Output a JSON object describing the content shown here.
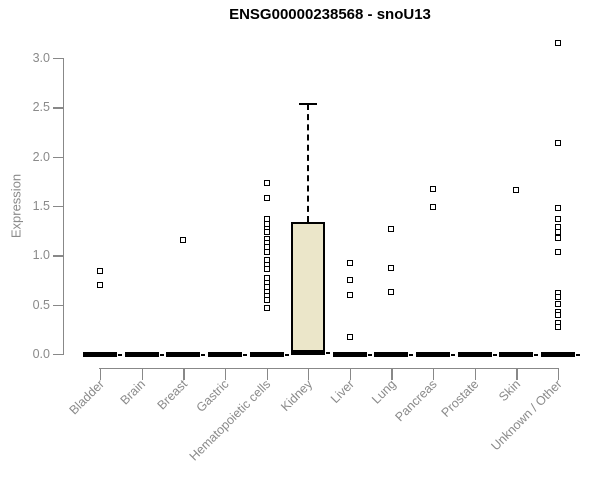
{
  "chart_data": {
    "type": "boxplot",
    "title": "ENSG00000238568 - snoU13",
    "ylabel": "Expression",
    "xlabel": "",
    "ylim": [
      0.0,
      3.0
    ],
    "yticks": [
      0.0,
      0.5,
      1.0,
      1.5,
      2.0,
      2.5,
      3.0
    ],
    "grid": false,
    "legend": "none",
    "categories": [
      "Bladder",
      "Brain",
      "Breast",
      "Gastric",
      "Hematopoietic cells",
      "Kidney",
      "Liver",
      "Lung",
      "Pancreas",
      "Prostate",
      "Skin",
      "Unknown / Other"
    ],
    "boxes": [
      {
        "category": "Bladder",
        "median": 0.0,
        "q1": 0.0,
        "q3": 0.0,
        "whisker_low": 0.0,
        "whisker_high": 0.0,
        "outliers": [
          0.84,
          0.7
        ]
      },
      {
        "category": "Brain",
        "median": 0.0,
        "q1": 0.0,
        "q3": 0.0,
        "whisker_low": 0.0,
        "whisker_high": 0.0,
        "outliers": []
      },
      {
        "category": "Breast",
        "median": 0.0,
        "q1": 0.0,
        "q3": 0.0,
        "whisker_low": 0.0,
        "whisker_high": 0.0,
        "outliers": [
          1.16
        ]
      },
      {
        "category": "Gastric",
        "median": 0.0,
        "q1": 0.0,
        "q3": 0.0,
        "whisker_low": 0.0,
        "whisker_high": 0.0,
        "outliers": []
      },
      {
        "category": "Hematopoietic cells",
        "median": 0.0,
        "q1": 0.0,
        "q3": 0.0,
        "whisker_low": 0.0,
        "whisker_high": 0.0,
        "outliers": [
          1.73,
          1.58,
          1.37,
          1.32,
          1.27,
          1.24,
          1.17,
          1.13,
          1.08,
          1.03,
          0.95,
          0.9,
          0.86,
          0.77,
          0.72,
          0.68,
          0.63,
          0.59,
          0.55,
          0.47
        ]
      },
      {
        "category": "Kidney",
        "median": 0.02,
        "q1": 0.0,
        "q3": 1.34,
        "whisker_low": 0.0,
        "whisker_high": 2.53,
        "outliers": []
      },
      {
        "category": "Liver",
        "median": 0.0,
        "q1": 0.0,
        "q3": 0.0,
        "whisker_low": 0.0,
        "whisker_high": 0.0,
        "outliers": [
          0.92,
          0.75,
          0.6,
          0.17
        ]
      },
      {
        "category": "Lung",
        "median": 0.0,
        "q1": 0.0,
        "q3": 0.0,
        "whisker_low": 0.0,
        "whisker_high": 0.0,
        "outliers": [
          1.27,
          0.87,
          0.63
        ]
      },
      {
        "category": "Pancreas",
        "median": 0.0,
        "q1": 0.0,
        "q3": 0.0,
        "whisker_low": 0.0,
        "whisker_high": 0.0,
        "outliers": [
          1.67,
          1.49
        ]
      },
      {
        "category": "Prostate",
        "median": 0.0,
        "q1": 0.0,
        "q3": 0.0,
        "whisker_low": 0.0,
        "whisker_high": 0.0,
        "outliers": []
      },
      {
        "category": "Skin",
        "median": 0.0,
        "q1": 0.0,
        "q3": 0.0,
        "whisker_low": 0.0,
        "whisker_high": 0.0,
        "outliers": [
          1.66
        ]
      },
      {
        "category": "Unknown / Other",
        "median": 0.0,
        "q1": 0.0,
        "q3": 0.0,
        "whisker_low": 0.0,
        "whisker_high": 0.0,
        "outliers": [
          3.15,
          2.14,
          1.48,
          1.37,
          1.29,
          1.24,
          1.18,
          1.03,
          0.62,
          0.58,
          0.51,
          0.43,
          0.4,
          0.31,
          0.27
        ]
      }
    ],
    "colors": {
      "box_fill": "#EBE6C9",
      "box_border": "#000000",
      "marker": "#000000",
      "axis": "#888888",
      "tick_label": "#8a8a8a",
      "title": "#000000",
      "background": "#ffffff"
    }
  }
}
